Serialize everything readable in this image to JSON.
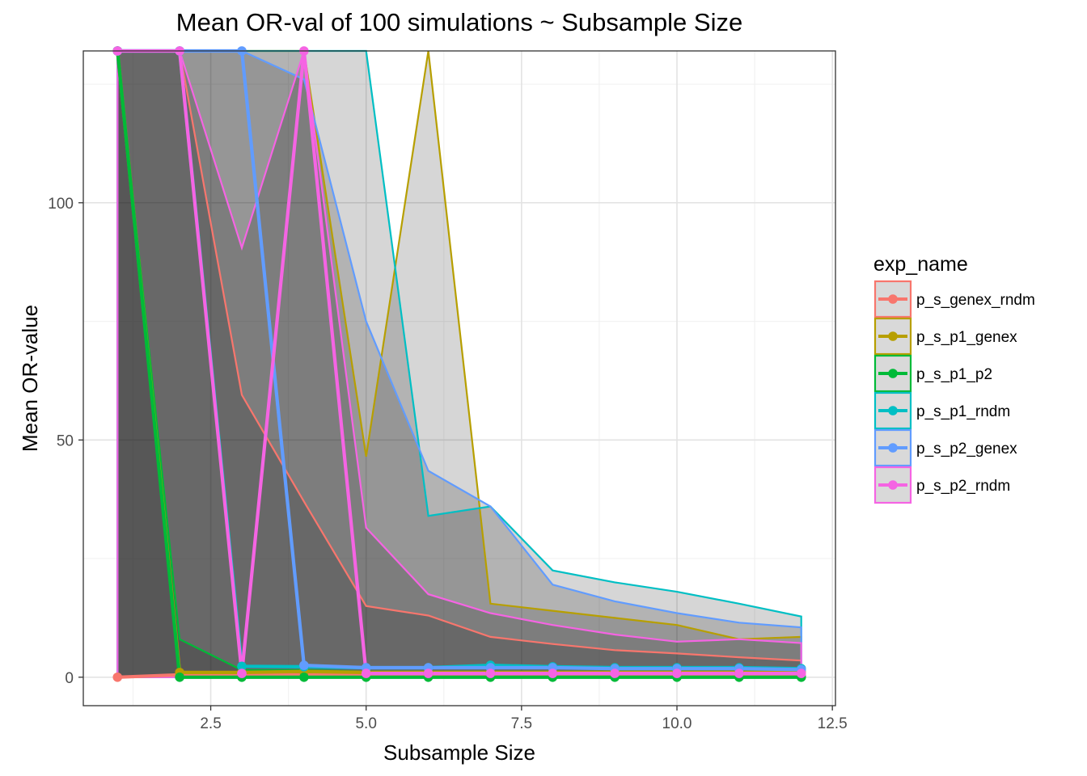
{
  "chart_data": {
    "type": "line",
    "title": "Mean OR-val of 100 simulations ~ Subsample Size",
    "xlabel": "Subsample Size",
    "ylabel": "Mean OR-value",
    "xlim": [
      0.45,
      12.55
    ],
    "ylim": [
      -6,
      132
    ],
    "x_ticks": [
      2.5,
      5.0,
      7.5,
      10.0,
      12.5
    ],
    "x_tick_labels": [
      "2.5",
      "5.0",
      "7.5",
      "10.0",
      "12.5"
    ],
    "y_ticks": [
      0,
      50,
      100
    ],
    "y_tick_labels": [
      "0",
      "50",
      "100"
    ],
    "grid": true,
    "legend": {
      "title": "exp_name",
      "position": "right"
    },
    "band_fill": "#000000",
    "band_opacity": 0.16,
    "x": [
      1,
      2,
      3,
      4,
      5,
      6,
      7,
      8,
      9,
      10,
      11,
      12
    ],
    "series": [
      {
        "name": "p_s_genex_rndm",
        "color": "#F8766D",
        "values": [
          0,
          0.5,
          0.6,
          0.5,
          0.4,
          0.4,
          0.4,
          0.3,
          0.3,
          0.3,
          0.3,
          0.3
        ],
        "upper": [
          132,
          132,
          59.5,
          37,
          15,
          13,
          8.5,
          7,
          5.7,
          5,
          4.2,
          3.5
        ],
        "lower": [
          0,
          0,
          0,
          0,
          0,
          0,
          0,
          0,
          0,
          0,
          0,
          0
        ]
      },
      {
        "name": "p_s_p1_genex",
        "color": "#B79F00",
        "values": [
          132,
          1.0,
          1.0,
          1.2,
          1.0,
          1.0,
          1.0,
          1.0,
          1.0,
          1.0,
          1.0,
          1.0
        ],
        "upper": [
          132,
          132,
          132,
          132,
          46.5,
          132,
          15.5,
          14,
          12.5,
          11,
          8,
          8.5
        ],
        "lower": [
          0,
          0,
          0,
          0,
          0,
          0,
          0,
          0,
          0,
          0,
          0,
          0
        ]
      },
      {
        "name": "p_s_p1_p2",
        "color": "#00BA38",
        "values": [
          132,
          0,
          0,
          0,
          0,
          0,
          0,
          0,
          0,
          0,
          0,
          0
        ],
        "upper": [
          132,
          8,
          1.5,
          1.5,
          1.2,
          1.2,
          1.2,
          1.2,
          1.2,
          1.2,
          1.2,
          1.2
        ],
        "lower": [
          0,
          0,
          0,
          0,
          0,
          0,
          0,
          0,
          0,
          0,
          0,
          0
        ]
      },
      {
        "name": "p_s_p1_rndm",
        "color": "#00BFC4",
        "values": [
          132,
          132,
          2.3,
          2.2,
          2.0,
          2.0,
          2.5,
          2.2,
          2.0,
          2.0,
          2.0,
          1.8
        ],
        "upper": [
          132,
          132,
          132,
          132,
          132,
          34,
          36,
          22.5,
          20,
          18,
          15.5,
          12.8
        ],
        "lower": [
          0,
          0,
          0,
          0,
          0,
          0,
          0,
          0,
          0,
          0,
          0,
          0
        ]
      },
      {
        "name": "p_s_p2_genex",
        "color": "#619CFF",
        "values": [
          132,
          132,
          132,
          2.5,
          2.0,
          2.0,
          2.0,
          2.0,
          1.8,
          1.8,
          1.8,
          1.6
        ],
        "upper": [
          132,
          132,
          132,
          126,
          75,
          43.5,
          36,
          19.5,
          16,
          13.5,
          11.5,
          10.5
        ],
        "lower": [
          0,
          0,
          0,
          0,
          0,
          0,
          0,
          0,
          0,
          0,
          0,
          0
        ]
      },
      {
        "name": "p_s_p2_rndm",
        "color": "#F564E3",
        "values": [
          132,
          132,
          0.8,
          132,
          0.8,
          0.8,
          0.8,
          0.8,
          0.8,
          0.8,
          0.8,
          0.8
        ],
        "upper": [
          132,
          132,
          90.5,
          132,
          31.5,
          17.5,
          13.5,
          11,
          9,
          7.5,
          8,
          7.2
        ],
        "lower": [
          0,
          0,
          0,
          0,
          0,
          0,
          0,
          0,
          0,
          0,
          0,
          0
        ]
      }
    ]
  }
}
